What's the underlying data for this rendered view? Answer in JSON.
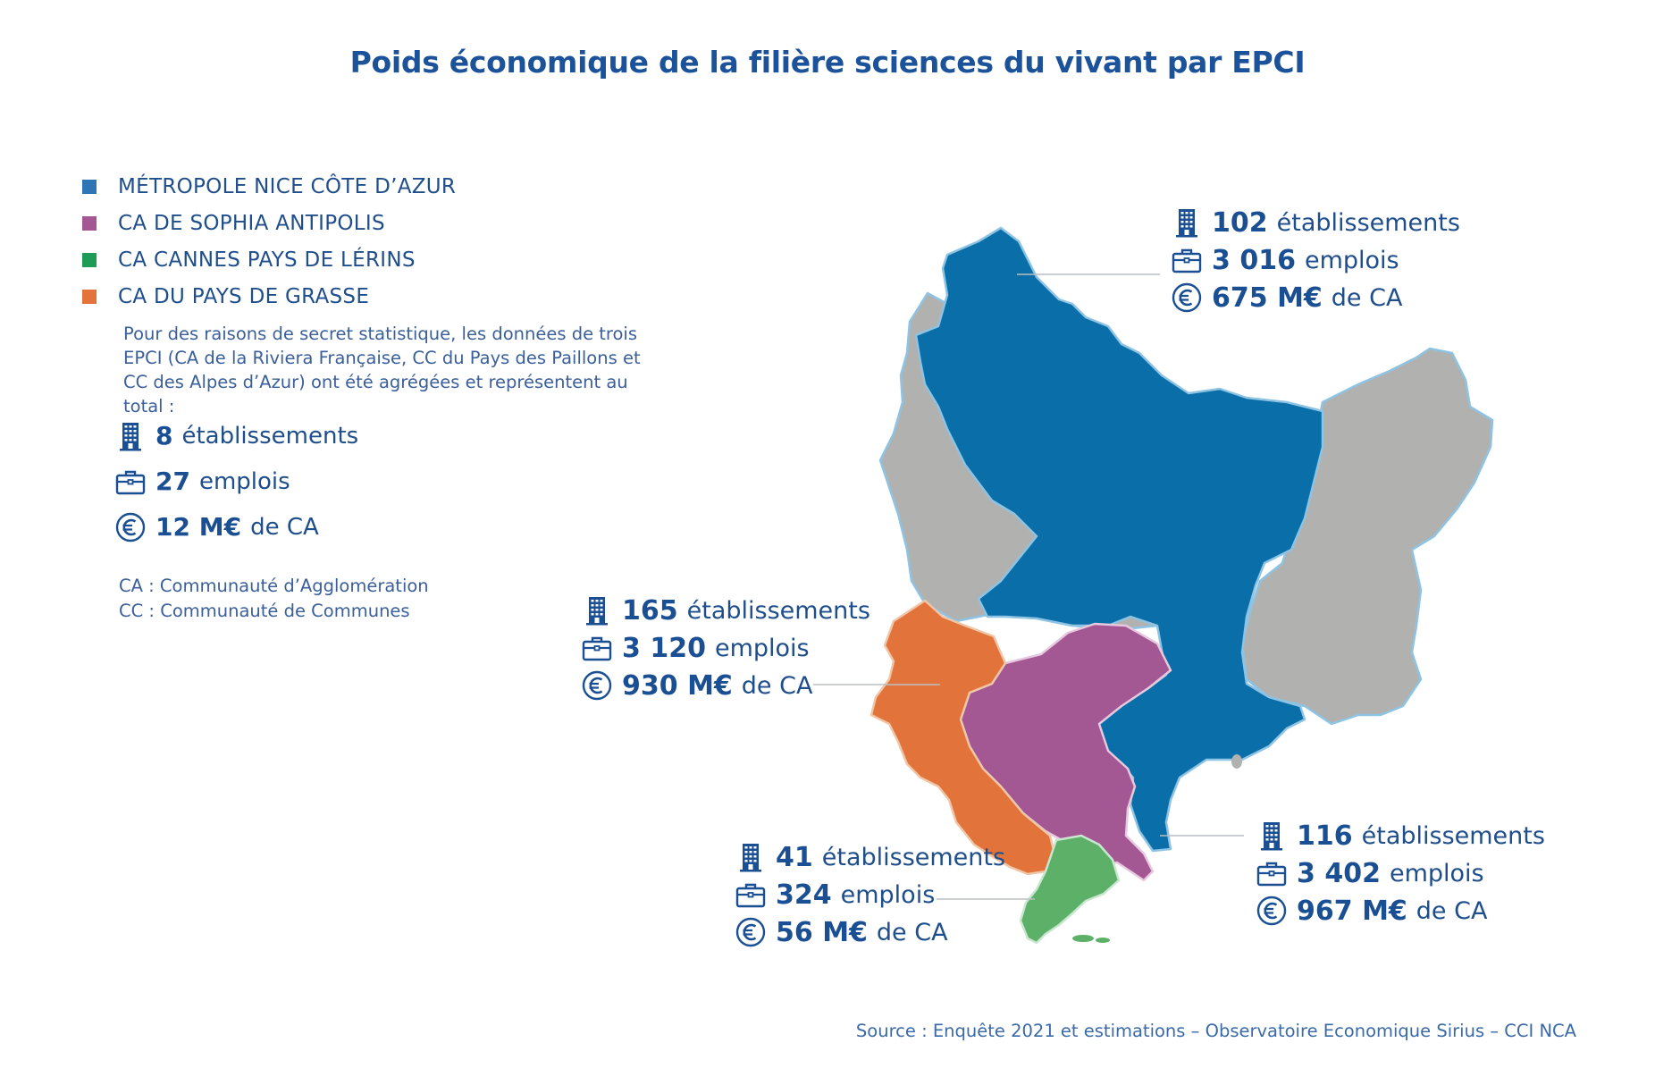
{
  "title": "Poids économique de la filière sciences du vivant par EPCI",
  "legend": [
    {
      "label": "MÉTROPOLE NICE CÔTE D’AZUR",
      "color": "#0a6fa8"
    },
    {
      "label": "CA DE SOPHIA ANTIPOLIS",
      "color": "#a35893"
    },
    {
      "label": "CA CANNES PAYS DE LÉRINS",
      "color": "#1e9b57"
    },
    {
      "label": "CA DU PAYS DE GRASSE",
      "color": "#e2733a"
    }
  ],
  "note": "Pour des raisons de secret statistique, les données de trois EPCI (CA de la Riviera Française, CC du Pays des Paillons et CC des Alpes d’Azur) ont été agrégées et représentent au total  :",
  "aggregated": {
    "etablissements": {
      "value": "8",
      "unit": "établissements"
    },
    "emplois": {
      "value": "27",
      "unit": "emplois"
    },
    "ca": {
      "value": "12 M€",
      "unit": "de CA"
    }
  },
  "abbreviations": {
    "ca": "CA : Communauté d’Agglomération",
    "cc": "CC : Communauté de Communes"
  },
  "regions": {
    "nice": {
      "etablissements": {
        "value": "102",
        "unit": "établissements"
      },
      "emplois": {
        "value": "3 016",
        "unit": "emplois"
      },
      "ca": {
        "value": "675 M€",
        "unit": "de CA"
      }
    },
    "grasse": {
      "etablissements": {
        "value": "165",
        "unit": "établissements"
      },
      "emplois": {
        "value": "3 120",
        "unit": "emplois"
      },
      "ca": {
        "value": "930 M€",
        "unit": "de CA"
      }
    },
    "cannes": {
      "etablissements": {
        "value": "41",
        "unit": "établissements"
      },
      "emplois": {
        "value": "324",
        "unit": "emplois"
      },
      "ca": {
        "value": "56 M€",
        "unit": "de CA"
      }
    },
    "sophia": {
      "etablissements": {
        "value": "116",
        "unit": "établissements"
      },
      "emplois": {
        "value": "3 402",
        "unit": "emplois"
      },
      "ca": {
        "value": "967 M€",
        "unit": "de CA"
      }
    }
  },
  "colors": {
    "nice": "#0a6fa8",
    "sophia": "#a35893",
    "cannes": "#5cb068",
    "grasse": "#e2733a",
    "other": "#b1b2b0",
    "border": "#8ec3e3"
  },
  "icons": {
    "etablissements": "building-icon",
    "emplois": "briefcase-icon",
    "ca": "euro-icon"
  },
  "source": "Source : Enquête 2021 et estimations – Observatoire Economique Sirius – CCI NCA"
}
